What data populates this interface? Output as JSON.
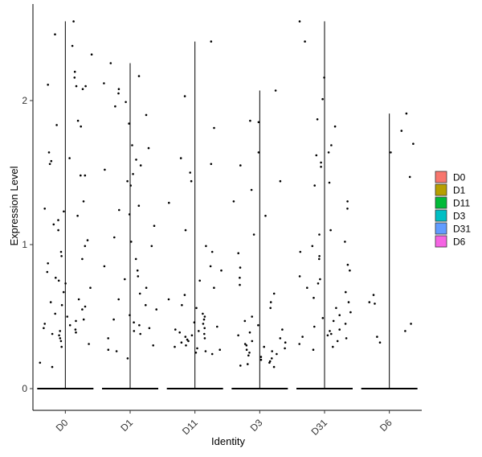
{
  "chart_data": {
    "type": "violin",
    "xlabel": "Identity",
    "ylabel": "Expression Level",
    "categories": [
      "D0",
      "D1",
      "D11",
      "D3",
      "D31",
      "D6"
    ],
    "ylim": [
      -0.15,
      2.62
    ],
    "y_ticks": [
      0,
      1,
      2
    ],
    "y_tick_labels": [
      "0",
      "1",
      "2"
    ],
    "grid": false,
    "legend_position": "right",
    "legend": [
      {
        "label": "D0",
        "color": "#F8766D"
      },
      {
        "label": "D1",
        "color": "#B79F00"
      },
      {
        "label": "D11",
        "color": "#00BA38"
      },
      {
        "label": "D3",
        "color": "#00BFC4"
      },
      {
        "label": "D31",
        "color": "#619CFF"
      },
      {
        "label": "D6",
        "color": "#F564E3"
      }
    ],
    "series": [
      {
        "category": "D0",
        "max": 2.55,
        "points": [
          2.55,
          2.46,
          2.38,
          2.32,
          2.2,
          2.16,
          2.11,
          2.1,
          2.1,
          2.08,
          1.86,
          1.83,
          1.82,
          1.64,
          1.6,
          1.58,
          1.56,
          1.48,
          1.48,
          1.3,
          1.25,
          1.23,
          1.2,
          1.17,
          1.14,
          1.1,
          1.03,
          0.99,
          0.95,
          0.92,
          0.9,
          0.87,
          0.81,
          0.77,
          0.75,
          0.73,
          0.7,
          0.67,
          0.62,
          0.6,
          0.58,
          0.57,
          0.55,
          0.52,
          0.5,
          0.48,
          0.47,
          0.45,
          0.44,
          0.42,
          0.41,
          0.4,
          0.39,
          0.38,
          0.37,
          0.35,
          0.33,
          0.31,
          0.29,
          0.18,
          0.15
        ]
      },
      {
        "category": "D1",
        "max": 2.26,
        "points": [
          2.26,
          2.17,
          2.12,
          2.08,
          2.05,
          1.99,
          1.96,
          1.9,
          1.84,
          1.69,
          1.67,
          1.59,
          1.55,
          1.52,
          1.49,
          1.44,
          1.41,
          1.27,
          1.24,
          1.21,
          1.13,
          1.05,
          1.02,
          0.99,
          0.9,
          0.85,
          0.82,
          0.78,
          0.76,
          0.7,
          0.66,
          0.62,
          0.58,
          0.55,
          0.51,
          0.48,
          0.46,
          0.44,
          0.42,
          0.4,
          0.38,
          0.35,
          0.3,
          0.27,
          0.26,
          0.21
        ]
      },
      {
        "category": "D11",
        "max": 2.41,
        "points": [
          2.41,
          2.03,
          1.81,
          1.6,
          1.56,
          1.5,
          1.44,
          1.29,
          1.1,
          0.99,
          0.95,
          0.85,
          0.82,
          0.75,
          0.7,
          0.65,
          0.62,
          0.58,
          0.56,
          0.52,
          0.5,
          0.48,
          0.46,
          0.45,
          0.43,
          0.42,
          0.41,
          0.4,
          0.39,
          0.38,
          0.37,
          0.36,
          0.35,
          0.34,
          0.33,
          0.32,
          0.3,
          0.29,
          0.28,
          0.27,
          0.26,
          0.25,
          0.24
        ]
      },
      {
        "category": "D3",
        "max": 2.07,
        "points": [
          2.07,
          1.86,
          1.85,
          1.64,
          1.55,
          1.44,
          1.38,
          1.3,
          1.2,
          1.07,
          0.94,
          0.84,
          0.77,
          0.72,
          0.66,
          0.6,
          0.56,
          0.5,
          0.47,
          0.44,
          0.41,
          0.39,
          0.37,
          0.35,
          0.33,
          0.32,
          0.31,
          0.3,
          0.29,
          0.28,
          0.27,
          0.26,
          0.25,
          0.24,
          0.23,
          0.22,
          0.21,
          0.2,
          0.19,
          0.18,
          0.17,
          0.16,
          0.15
        ]
      },
      {
        "category": "D31",
        "max": 2.55,
        "points": [
          2.55,
          2.41,
          2.16,
          2.01,
          1.87,
          1.82,
          1.69,
          1.64,
          1.62,
          1.57,
          1.54,
          1.43,
          1.41,
          1.3,
          1.25,
          1.1,
          1.07,
          1.02,
          0.99,
          0.95,
          0.92,
          0.9,
          0.86,
          0.82,
          0.78,
          0.76,
          0.73,
          0.7,
          0.67,
          0.63,
          0.6,
          0.56,
          0.53,
          0.51,
          0.49,
          0.47,
          0.45,
          0.43,
          0.41,
          0.4,
          0.38,
          0.37,
          0.36,
          0.35,
          0.33,
          0.31,
          0.29,
          0.27
        ]
      },
      {
        "category": "D6",
        "max": 1.91,
        "points": [
          1.91,
          1.79,
          1.7,
          1.64,
          1.47,
          0.65,
          0.6,
          0.59,
          0.45,
          0.4,
          0.36,
          0.32
        ]
      }
    ]
  }
}
